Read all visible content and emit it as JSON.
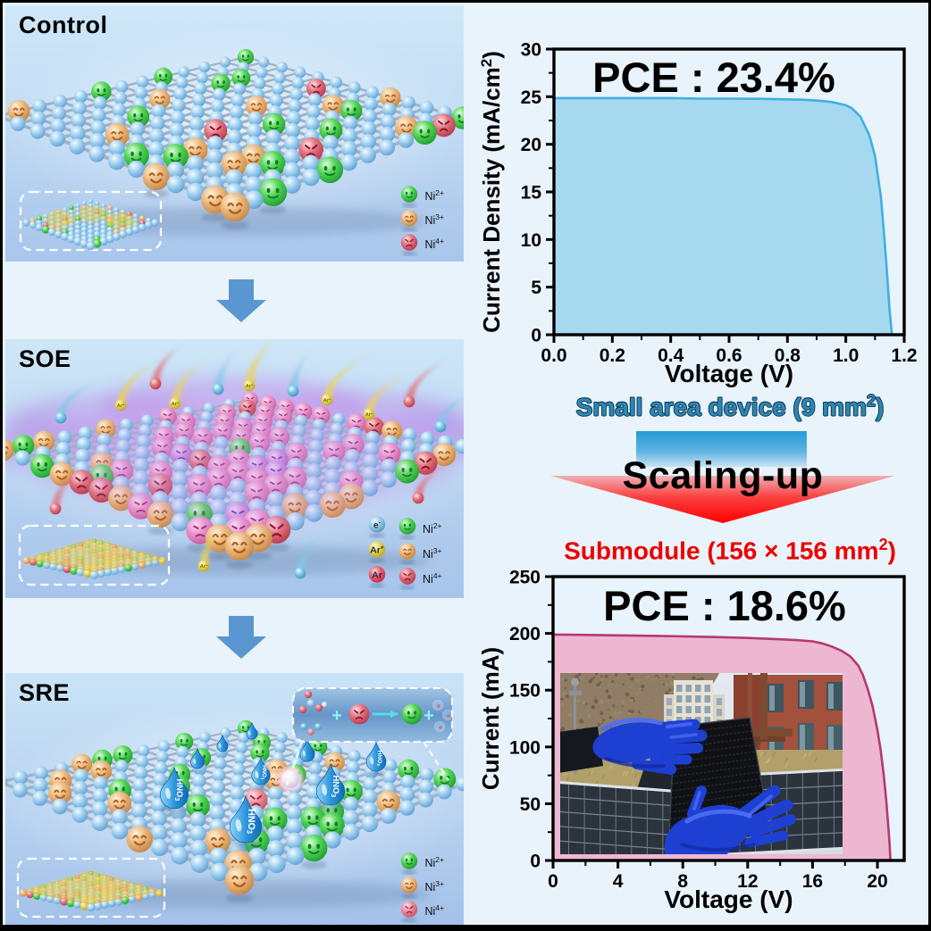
{
  "figure": {
    "panels": [
      {
        "id": "control",
        "title": "Control",
        "legend": [
          {
            "base": "Ni",
            "sup": "2+",
            "sphere": "green"
          },
          {
            "base": "Ni",
            "sup": "3+",
            "sphere": "orange"
          },
          {
            "base": "Ni",
            "sup": "4+",
            "sphere": "red"
          }
        ]
      },
      {
        "id": "soe",
        "title": "SOE",
        "legend_particles": [
          {
            "base": "e",
            "sup": "-",
            "sphere": "eblue"
          },
          {
            "base": "Ar",
            "sup": "+",
            "sphere": "yellow"
          },
          {
            "base": "Ar",
            "sup": "",
            "sphere": "ared"
          }
        ],
        "legend": [
          {
            "base": "Ni",
            "sup": "2+",
            "sphere": "green"
          },
          {
            "base": "Ni",
            "sup": "3+",
            "sphere": "orange"
          },
          {
            "base": "Ni",
            "sup": "4+",
            "sphere": "red"
          }
        ]
      },
      {
        "id": "sre",
        "title": "SRE",
        "droplet_label": {
          "base": "HNO",
          "sub": "3"
        },
        "reaction": {
          "plus": "+"
        },
        "legend": [
          {
            "base": "Ni",
            "sup": "2+",
            "sphere": "green"
          },
          {
            "base": "Ni",
            "sup": "3+",
            "sphere": "orange"
          },
          {
            "base": "Ni",
            "sup": "4+",
            "sphere": "pinkred"
          }
        ]
      }
    ]
  },
  "scaling": {
    "label": "Scaling-up",
    "top_caption": {
      "pre": "Small area device (9 mm",
      "sup": "2",
      "post": ")"
    },
    "bottom_caption": {
      "pre": "Submodule (156 × 156 mm",
      "sup": "2",
      "post": ")"
    },
    "colors": {
      "block": "#2d9ed8",
      "arrow": "#ff0000",
      "top_text": "#2f86b4",
      "bottom_text": "#ec0000"
    }
  },
  "chart_data": [
    {
      "type": "area",
      "title": "PCE : 23.4%",
      "xlabel": "Voltage (V)",
      "ylabel": "Current Density (mA/cm²)",
      "ylabel_parts": {
        "pre": "Current Density (mA/cm",
        "sup": "2",
        "post": ")"
      },
      "xlim": [
        0,
        1.2
      ],
      "ylim": [
        0,
        30
      ],
      "xtick_labels": [
        "0.0",
        "0.2",
        "0.4",
        "0.6",
        "0.8",
        "1.0",
        "1.2"
      ],
      "xticks": [
        0,
        0.2,
        0.4,
        0.6,
        0.8,
        1.0,
        1.2
      ],
      "ytick_labels": [
        "0",
        "5",
        "10",
        "15",
        "20",
        "25",
        "30"
      ],
      "yticks": [
        0,
        5,
        10,
        15,
        20,
        25,
        30
      ],
      "x_minor_step": 0.1,
      "y_minor_step": 2.5,
      "grid": false,
      "jsc": 24.85,
      "voc": 1.158,
      "line_color": "#3fb0e0",
      "fill_color": "#a6d9ef",
      "series": [
        {
          "name": "small-area J-V",
          "x": [
            0,
            0.1,
            0.2,
            0.3,
            0.4,
            0.5,
            0.6,
            0.7,
            0.8,
            0.85,
            0.9,
            0.95,
            1.0,
            1.02,
            1.05,
            1.08,
            1.1,
            1.12,
            1.13,
            1.14,
            1.15,
            1.158
          ],
          "y": [
            24.85,
            24.85,
            24.85,
            24.85,
            24.85,
            24.8,
            24.8,
            24.78,
            24.72,
            24.68,
            24.6,
            24.45,
            24.1,
            23.8,
            22.9,
            21.0,
            18.8,
            14.5,
            11.0,
            7.0,
            2.5,
            0
          ]
        }
      ]
    },
    {
      "type": "area",
      "title": "PCE : 18.6%",
      "xlabel": "Voltage (V)",
      "ylabel": "Current (mA)",
      "ylabel_parts": {
        "pre": "Current (mA)",
        "sup": "",
        "post": ""
      },
      "xlim": [
        0,
        21.65
      ],
      "ylim": [
        0,
        250
      ],
      "xtick_labels": [
        "0",
        "4",
        "8",
        "12",
        "16",
        "20"
      ],
      "xticks": [
        0,
        4,
        8,
        12,
        16,
        20
      ],
      "ytick_labels": [
        "0",
        "50",
        "100",
        "150",
        "200",
        "250"
      ],
      "yticks": [
        0,
        50,
        100,
        150,
        200,
        250
      ],
      "x_minor_step": 2,
      "y_minor_step": 25,
      "grid": false,
      "isc": 199,
      "voc": 20.8,
      "line_color": "#b5396e",
      "fill_color": "#edb7d2",
      "series": [
        {
          "name": "submodule I-V",
          "x": [
            0,
            2,
            4,
            6,
            8,
            10,
            12,
            14,
            15,
            16,
            16.6,
            17.2,
            17.8,
            18.3,
            18.8,
            19.1,
            19.4,
            19.7,
            20.0,
            20.2,
            20.4,
            20.55,
            20.65,
            20.75,
            20.8
          ],
          "y": [
            199,
            198.7,
            198.3,
            197.9,
            197.4,
            196.8,
            196.0,
            194.8,
            194.1,
            193.0,
            191.2,
            188.4,
            184.6,
            180.0,
            172,
            163.5,
            151,
            136,
            115,
            97,
            74,
            52,
            34,
            14,
            0
          ]
        }
      ]
    }
  ]
}
